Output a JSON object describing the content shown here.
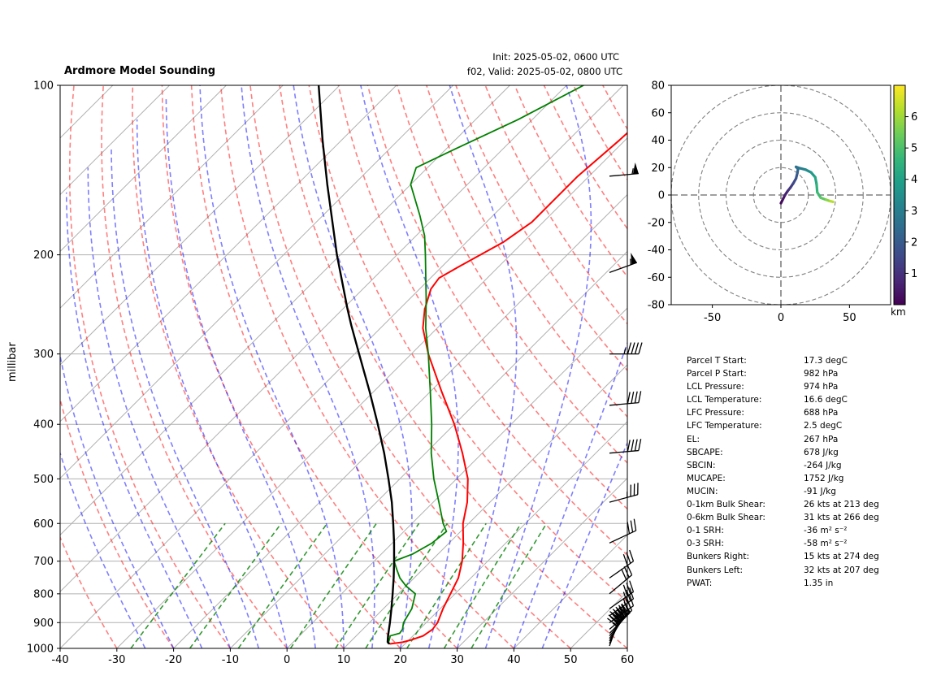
{
  "header": {
    "title": "Ardmore Model Sounding",
    "init": "Init: 2025-05-02, 0600 UTC",
    "valid": "f02, Valid: 2025-05-02, 0800 UTC"
  },
  "chart_data": [
    {
      "type": "line",
      "subtype": "skew-t log-p",
      "ylabel": "millibar",
      "xlabel": "",
      "xlim": [
        -40,
        60
      ],
      "ylim": [
        1000,
        100
      ],
      "yscale": "log",
      "x_ticks": [
        -40,
        -30,
        -20,
        -10,
        0,
        10,
        20,
        30,
        40,
        50,
        60
      ],
      "y_ticks": [
        100,
        200,
        300,
        400,
        500,
        600,
        700,
        800,
        900,
        1000
      ],
      "grid": true,
      "series": [
        {
          "color": "#ff0000",
          "points": [
            {
              "p": 982,
              "t": 17.3
            },
            {
              "p": 975,
              "t": 19.3
            },
            {
              "p": 965,
              "t": 20.5
            },
            {
              "p": 950,
              "t": 21.8
            },
            {
              "p": 925,
              "t": 22.3
            },
            {
              "p": 900,
              "t": 22.0
            },
            {
              "p": 850,
              "t": 20.5
            },
            {
              "p": 800,
              "t": 19.2
            },
            {
              "p": 750,
              "t": 17.8
            },
            {
              "p": 700,
              "t": 15.5
            },
            {
              "p": 650,
              "t": 12.5
            },
            {
              "p": 600,
              "t": 9.0
            },
            {
              "p": 550,
              "t": 6.0
            },
            {
              "p": 500,
              "t": 2.0
            },
            {
              "p": 450,
              "t": -3.5
            },
            {
              "p": 400,
              "t": -10.0
            },
            {
              "p": 350,
              "t": -18.0
            },
            {
              "p": 300,
              "t": -27.0
            },
            {
              "p": 270,
              "t": -32.5
            },
            {
              "p": 250,
              "t": -35.5
            },
            {
              "p": 230,
              "t": -38.0
            },
            {
              "p": 220,
              "t": -38.5
            },
            {
              "p": 210,
              "t": -37.0
            },
            {
              "p": 190,
              "t": -33.5
            },
            {
              "p": 175,
              "t": -32.0
            },
            {
              "p": 160,
              "t": -32.0
            },
            {
              "p": 145,
              "t": -32.0
            },
            {
              "p": 125,
              "t": -31.0
            },
            {
              "p": 110,
              "t": -30.5
            },
            {
              "p": 100,
              "t": -30.0
            }
          ]
        },
        {
          "color": "#008000",
          "points": [
            {
              "p": 982,
              "t": 17.0
            },
            {
              "p": 965,
              "t": 16.5
            },
            {
              "p": 950,
              "t": 16.0
            },
            {
              "p": 940,
              "t": 17.2
            },
            {
              "p": 925,
              "t": 17.0
            },
            {
              "p": 900,
              "t": 16.0
            },
            {
              "p": 850,
              "t": 15.0
            },
            {
              "p": 800,
              "t": 13.0
            },
            {
              "p": 775,
              "t": 10.0
            },
            {
              "p": 750,
              "t": 7.5
            },
            {
              "p": 725,
              "t": 5.5
            },
            {
              "p": 700,
              "t": 3.5
            },
            {
              "p": 680,
              "t": 5.5
            },
            {
              "p": 650,
              "t": 7.0
            },
            {
              "p": 620,
              "t": 7.5
            },
            {
              "p": 600,
              "t": 5.5
            },
            {
              "p": 550,
              "t": 1.0
            },
            {
              "p": 500,
              "t": -4.0
            },
            {
              "p": 450,
              "t": -9.0
            },
            {
              "p": 400,
              "t": -14.0
            },
            {
              "p": 350,
              "t": -20.0
            },
            {
              "p": 300,
              "t": -27.0
            },
            {
              "p": 270,
              "t": -32.0
            },
            {
              "p": 240,
              "t": -37.0
            },
            {
              "p": 200,
              "t": -45.0
            },
            {
              "p": 185,
              "t": -48.5
            },
            {
              "p": 170,
              "t": -53.0
            },
            {
              "p": 150,
              "t": -60.0
            },
            {
              "p": 140,
              "t": -62.0
            },
            {
              "p": 130,
              "t": -58.5
            },
            {
              "p": 115,
              "t": -52.5
            },
            {
              "p": 100,
              "t": -47.0
            }
          ]
        },
        {
          "color": "#000000",
          "points": [
            {
              "p": 982,
              "t": 17.3
            },
            {
              "p": 974,
              "t": 16.6
            },
            {
              "p": 950,
              "t": 15.6
            },
            {
              "p": 900,
              "t": 13.6
            },
            {
              "p": 850,
              "t": 11.4
            },
            {
              "p": 800,
              "t": 9.0
            },
            {
              "p": 750,
              "t": 6.4
            },
            {
              "p": 700,
              "t": 3.5
            },
            {
              "p": 650,
              "t": 0.3
            },
            {
              "p": 600,
              "t": -3.3
            },
            {
              "p": 550,
              "t": -7.3
            },
            {
              "p": 500,
              "t": -12.0
            },
            {
              "p": 450,
              "t": -17.3
            },
            {
              "p": 400,
              "t": -23.5
            },
            {
              "p": 350,
              "t": -30.7
            },
            {
              "p": 300,
              "t": -39.2
            },
            {
              "p": 267,
              "t": -45.6
            },
            {
              "p": 250,
              "t": -49.1
            },
            {
              "p": 200,
              "t": -60.6
            },
            {
              "p": 150,
              "t": -74.7
            },
            {
              "p": 125,
              "t": -83.4
            },
            {
              "p": 100,
              "t": -93.7
            }
          ]
        }
      ],
      "wind_barbs": [
        {
          "p": 990,
          "speed": 30,
          "direction": 200
        },
        {
          "p": 980,
          "speed": 35,
          "direction": 205
        },
        {
          "p": 970,
          "speed": 40,
          "direction": 210
        },
        {
          "p": 960,
          "speed": 40,
          "direction": 215
        },
        {
          "p": 950,
          "speed": 40,
          "direction": 220
        },
        {
          "p": 940,
          "speed": 35,
          "direction": 225
        },
        {
          "p": 925,
          "speed": 35,
          "direction": 230
        },
        {
          "p": 900,
          "speed": 30,
          "direction": 235
        },
        {
          "p": 875,
          "speed": 30,
          "direction": 235
        },
        {
          "p": 850,
          "speed": 30,
          "direction": 235
        },
        {
          "p": 800,
          "speed": 30,
          "direction": 230
        },
        {
          "p": 750,
          "speed": 30,
          "direction": 235
        },
        {
          "p": 650,
          "speed": 30,
          "direction": 245
        },
        {
          "p": 550,
          "speed": 35,
          "direction": 255
        },
        {
          "p": 450,
          "speed": 40,
          "direction": 265
        },
        {
          "p": 370,
          "speed": 40,
          "direction": 265
        },
        {
          "p": 300,
          "speed": 45,
          "direction": 270
        },
        {
          "p": 215,
          "speed": 55,
          "direction": 250
        },
        {
          "p": 145,
          "speed": 55,
          "direction": 265
        }
      ]
    },
    {
      "type": "line",
      "subtype": "hodograph",
      "xlim": [
        -80,
        80
      ],
      "ylim": [
        -80,
        80
      ],
      "x_ticks": [
        -50,
        0,
        50
      ],
      "y_ticks": [
        -80,
        -60,
        -40,
        -20,
        0,
        20,
        40,
        60,
        80
      ],
      "colorbar_label": "km",
      "colorbar_ticks": [
        1,
        2,
        3,
        4,
        5,
        6
      ],
      "colorbar_range": [
        0,
        7
      ],
      "points": [
        {
          "u": 0,
          "v": -6,
          "h": 0.1
        },
        {
          "u": 1.5,
          "v": -3,
          "h": 0.3
        },
        {
          "u": 3,
          "v": 0,
          "h": 0.5
        },
        {
          "u": 5,
          "v": 3,
          "h": 0.8
        },
        {
          "u": 7,
          "v": 5.5,
          "h": 1.1
        },
        {
          "u": 9,
          "v": 8.5,
          "h": 1.4
        },
        {
          "u": 11,
          "v": 12,
          "h": 1.7
        },
        {
          "u": 12,
          "v": 16,
          "h": 2.0
        },
        {
          "u": 12.5,
          "v": 19,
          "h": 2.3
        },
        {
          "u": 11,
          "v": 20.5,
          "h": 2.5
        },
        {
          "u": 14,
          "v": 19.5,
          "h": 2.8
        },
        {
          "u": 18,
          "v": 18.5,
          "h": 3.2
        },
        {
          "u": 22,
          "v": 16.5,
          "h": 3.6
        },
        {
          "u": 25,
          "v": 13,
          "h": 4.0
        },
        {
          "u": 26,
          "v": 8,
          "h": 4.3
        },
        {
          "u": 26.5,
          "v": 2,
          "h": 4.6
        },
        {
          "u": 29,
          "v": -2,
          "h": 5.0
        },
        {
          "u": 33,
          "v": -3.5,
          "h": 5.5
        },
        {
          "u": 36,
          "v": -4.5,
          "h": 6.0
        },
        {
          "u": 38,
          "v": -5,
          "h": 6.5
        }
      ]
    }
  ],
  "parameters": [
    {
      "label": "Parcel T Start:",
      "value": "17.3 degC"
    },
    {
      "label": "Parcel P Start:",
      "value": "982 hPa"
    },
    {
      "label": "LCL Pressure:",
      "value": "974 hPa"
    },
    {
      "label": "LCL Temperature:",
      "value": "16.6 degC"
    },
    {
      "label": "LFC Pressure:",
      "value": "688 hPa"
    },
    {
      "label": "LFC Temperature:",
      "value": "2.5 degC"
    },
    {
      "label": "EL:",
      "value": "267 hPa"
    },
    {
      "label": "SBCAPE:",
      "value": "678 J/kg"
    },
    {
      "label": "SBCIN:",
      "value": "-264 J/kg"
    },
    {
      "label": "MUCAPE:",
      "value": "1752 J/kg"
    },
    {
      "label": "MUCIN:",
      "value": "-91 J/kg"
    },
    {
      "label": "0-1km Bulk Shear:",
      "value": "26 kts at 213 deg"
    },
    {
      "label": "0-6km Bulk Shear:",
      "value": "31 kts at 266 deg"
    },
    {
      "label": "0-1 SRH:",
      "value": "-36 m² s⁻²"
    },
    {
      "label": "0-3 SRH:",
      "value": "-58 m² s⁻²"
    },
    {
      "label": "Bunkers Right:",
      "value": "15 kts at 274 deg"
    },
    {
      "label": "Bunkers Left:",
      "value": "32 kts at 207 deg"
    },
    {
      "label": "PWAT:",
      "value": "1.35 in"
    }
  ]
}
